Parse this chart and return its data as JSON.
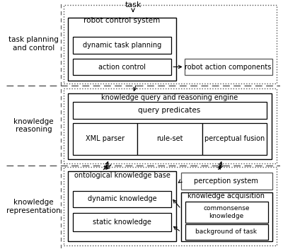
{
  "bg_color": "#ffffff",
  "text_color": "#000000",
  "section_labels": [
    "task planning\nand control",
    "knowledge\nreasoning",
    "knowledge\nrepresentation"
  ]
}
